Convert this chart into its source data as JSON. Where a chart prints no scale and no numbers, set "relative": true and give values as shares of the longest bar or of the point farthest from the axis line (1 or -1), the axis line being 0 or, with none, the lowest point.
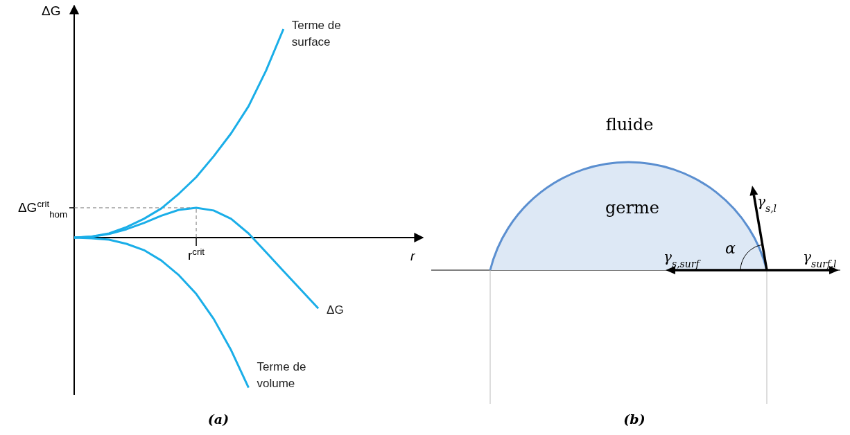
{
  "chart_data": [
    {
      "type": "line",
      "title": "(a)",
      "xlabel": "r",
      "ylabel": "ΔG",
      "relative": true,
      "categories": [
        null,
        null,
        null,
        null,
        null,
        null,
        null,
        null,
        null,
        null,
        null,
        null,
        null,
        null,
        null,
        null,
        null,
        null,
        null,
        null,
        null
      ],
      "series": [
        {
          "name": "Terme de surface",
          "color": "#1aaee8",
          "values": [
            0,
            0.005,
            0.02,
            0.05,
            0.09,
            0.14,
            0.21,
            0.29,
            0.39,
            0.5,
            0.63,
            0.8,
            1,
            null,
            null,
            null,
            null,
            null,
            null,
            null,
            null
          ]
        },
        {
          "name": "ΔG",
          "color": "#1aaee8",
          "values": [
            0,
            0.004,
            0.017,
            0.04,
            0.07,
            0.105,
            0.133,
            0.143,
            0.13,
            0.09,
            0.02,
            -0.07,
            -0.16,
            -0.25,
            -0.34,
            null,
            null,
            null,
            null,
            null,
            null
          ]
        },
        {
          "name": "Terme de volume",
          "color": "#1aaee8",
          "values": [
            0,
            -0.003,
            -0.01,
            -0.03,
            -0.06,
            -0.11,
            -0.18,
            -0.27,
            -0.39,
            -0.54,
            -0.72,
            null,
            null,
            null,
            null,
            null,
            null,
            null,
            null,
            null,
            null
          ]
        }
      ],
      "annotations": [
        "ΔG$^{crit}$$_{hom}$",
        "r$^{crit}$"
      ]
    },
    {
      "type": "other",
      "title": "(b)",
      "annotations": [
        "fluide",
        "germe",
        "γ$_{s,l}$",
        "α",
        "γ$_{s,surf}$",
        "γ$_{surf,l}$"
      ]
    }
  ]
}
